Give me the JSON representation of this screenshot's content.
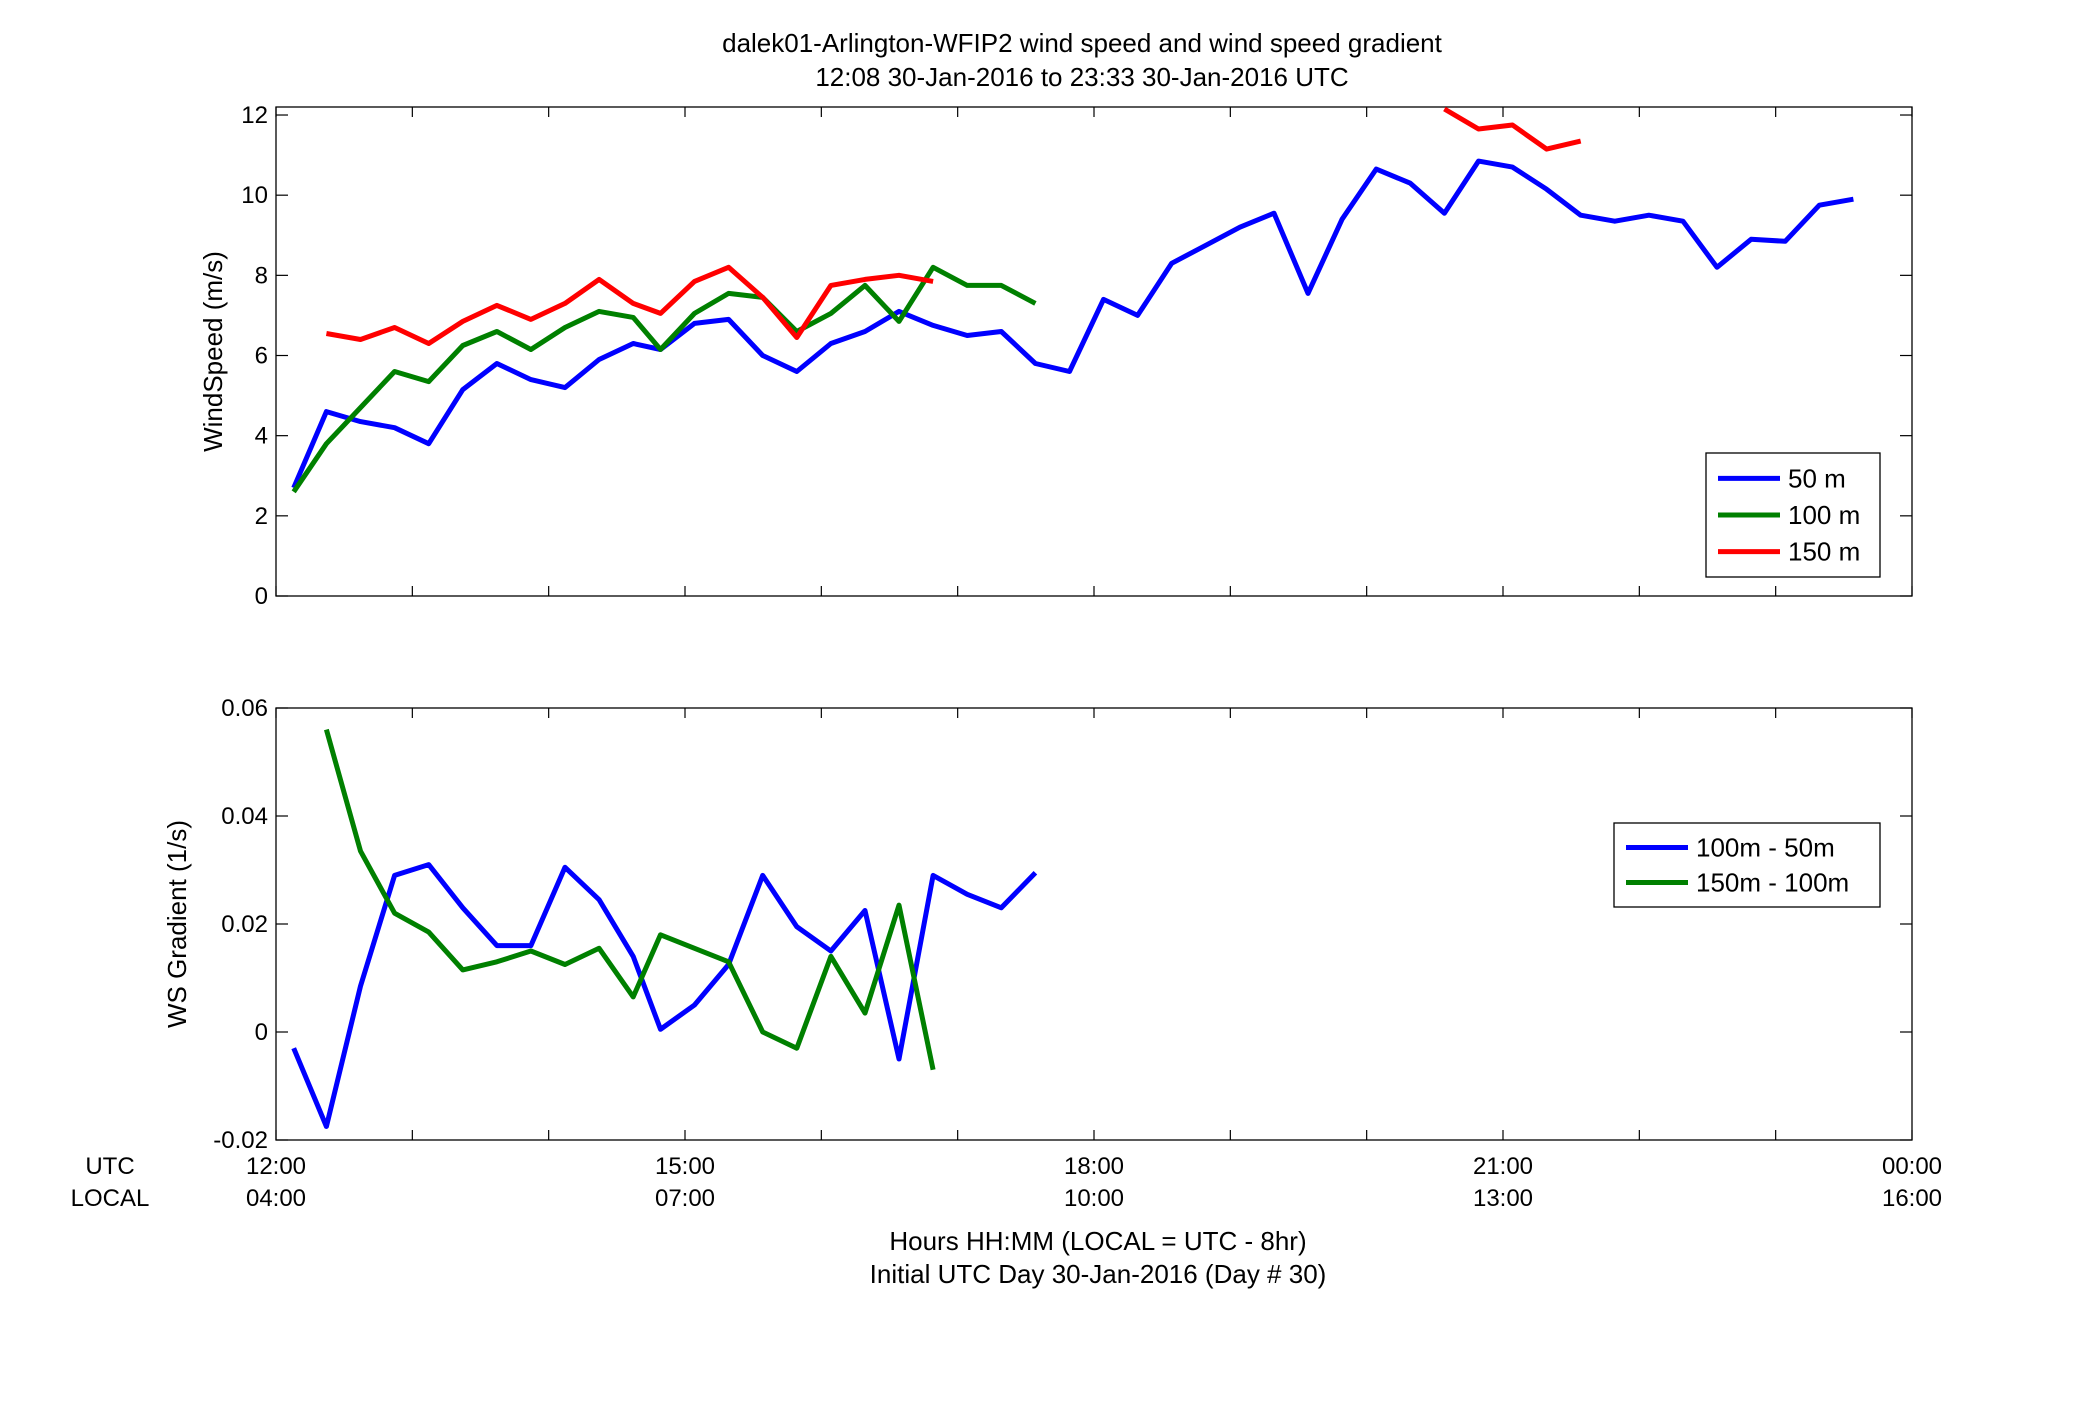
{
  "chart_data": [
    {
      "type": "line",
      "title_line1": "dalek01-Arlington-WFIP2  wind speed and wind speed gradient",
      "title_line2": "12:08 30-Jan-2016 to 23:33 30-Jan-2016  UTC",
      "ylabel": "WindSpeed (m/s)",
      "xlim_hours": [
        12,
        24
      ],
      "ylim": [
        0,
        12.2
      ],
      "yticks": [
        0,
        2,
        4,
        6,
        8,
        10,
        12
      ],
      "ytick_labels": [
        "0",
        "2",
        "4",
        "6",
        "8",
        "10",
        "12"
      ],
      "grid": false,
      "legend_position": "lower-right",
      "series": [
        {
          "name": "50 m",
          "color": "#0000ff",
          "x": [
            12.13,
            12.37,
            12.62,
            12.87,
            13.12,
            13.37,
            13.62,
            13.87,
            14.12,
            14.37,
            14.62,
            14.82,
            15.07,
            15.32,
            15.57,
            15.82,
            16.07,
            16.32,
            16.57,
            16.82,
            17.07,
            17.32,
            17.57,
            17.82,
            18.07,
            18.32,
            18.57,
            18.82,
            19.07,
            19.32,
            19.57,
            19.82,
            20.07,
            20.32,
            20.57,
            20.82,
            21.07,
            21.32,
            21.57,
            21.82,
            22.07,
            22.32,
            22.57,
            22.82,
            23.07,
            23.32,
            23.57
          ],
          "values": [
            2.7,
            4.6,
            4.35,
            4.2,
            3.8,
            5.15,
            5.8,
            5.4,
            5.2,
            5.9,
            6.3,
            6.15,
            6.8,
            6.9,
            6.0,
            5.6,
            6.3,
            6.6,
            7.1,
            6.75,
            6.5,
            6.6,
            5.8,
            5.6,
            7.4,
            7.0,
            8.3,
            8.75,
            9.2,
            9.55,
            7.55,
            9.4,
            10.65,
            10.3,
            9.55,
            10.85,
            10.7,
            10.15,
            9.5,
            9.35,
            9.5,
            9.35,
            8.2,
            8.9,
            8.85,
            9.75,
            9.9
          ]
        },
        {
          "name": "100 m",
          "color": "#008000",
          "x": [
            12.13,
            12.37,
            12.62,
            12.87,
            13.12,
            13.37,
            13.62,
            13.87,
            14.12,
            14.37,
            14.62,
            14.82,
            15.07,
            15.32,
            15.57,
            15.82,
            16.07,
            16.32,
            16.57,
            16.82,
            17.07,
            17.32,
            17.57
          ],
          "values": [
            2.6,
            3.8,
            4.7,
            5.6,
            5.35,
            6.25,
            6.6,
            6.15,
            6.7,
            7.1,
            6.95,
            6.15,
            7.05,
            7.55,
            7.45,
            6.6,
            7.05,
            7.75,
            6.85,
            8.2,
            7.75,
            7.75,
            7.3
          ]
        },
        {
          "name": "150 m",
          "color": "#ff0000",
          "x": [
            12.37,
            12.62,
            12.87,
            13.12,
            13.37,
            13.62,
            13.87,
            14.12,
            14.37,
            14.62,
            14.82,
            15.07,
            15.32,
            15.57,
            15.82,
            16.07,
            16.32,
            16.57,
            16.82,
            null,
            20.57,
            20.82,
            21.07,
            21.32,
            21.57
          ],
          "values": [
            6.55,
            6.4,
            6.7,
            6.3,
            6.85,
            7.25,
            6.9,
            7.3,
            7.9,
            7.3,
            7.05,
            7.85,
            8.2,
            7.45,
            6.45,
            7.75,
            7.9,
            8.0,
            7.85,
            null,
            12.15,
            11.65,
            11.75,
            11.15,
            11.35
          ]
        }
      ]
    },
    {
      "type": "line",
      "ylabel": "WS Gradient (1/s)",
      "xlabel_line1": "Hours HH:MM  (LOCAL = UTC - 8hr)",
      "xlabel_line2": "Initial UTC Day 30-Jan-2016 (Day # 30)",
      "row_label_utc": "UTC",
      "row_label_local": "LOCAL",
      "xlim_hours": [
        12,
        24
      ],
      "ylim": [
        -0.02,
        0.06
      ],
      "yticks": [
        -0.02,
        0,
        0.02,
        0.04,
        0.06
      ],
      "ytick_labels": [
        "-0.02",
        "0",
        "0.02",
        "0.04",
        "0.06"
      ],
      "xticks_hours": [
        12,
        15,
        18,
        21,
        24
      ],
      "xtick_labels_utc": [
        "12:00",
        "15:00",
        "18:00",
        "21:00",
        "00:00"
      ],
      "xtick_labels_local": [
        "04:00",
        "07:00",
        "10:00",
        "13:00",
        "16:00"
      ],
      "grid": false,
      "legend_position": "upper-right",
      "series": [
        {
          "name": "100m - 50m",
          "color": "#0000ff",
          "x": [
            12.13,
            12.37,
            12.62,
            12.87,
            13.12,
            13.37,
            13.62,
            13.87,
            14.12,
            14.37,
            14.62,
            14.82,
            15.07,
            15.32,
            15.57,
            15.82,
            16.07,
            16.32,
            16.57,
            16.82,
            17.07,
            17.32,
            17.57
          ],
          "values": [
            -0.003,
            -0.0175,
            0.0085,
            0.029,
            0.031,
            0.023,
            0.016,
            0.016,
            0.0305,
            0.0245,
            0.014,
            0.0005,
            0.005,
            0.0125,
            0.029,
            0.0195,
            0.015,
            0.0225,
            -0.005,
            0.029,
            0.0255,
            0.023,
            0.0295
          ]
        },
        {
          "name": "150m - 100m",
          "color": "#008000",
          "x": [
            12.37,
            12.62,
            12.87,
            13.12,
            13.37,
            13.62,
            13.87,
            14.12,
            14.37,
            14.62,
            14.82,
            15.07,
            15.32,
            15.57,
            15.82,
            16.07,
            16.32,
            16.57,
            16.82
          ],
          "values": [
            0.056,
            0.0335,
            0.022,
            0.0185,
            0.0115,
            0.013,
            0.015,
            0.0125,
            0.0155,
            0.0065,
            0.018,
            0.0155,
            0.013,
            0.0,
            -0.003,
            0.014,
            0.0035,
            0.0235,
            -0.007
          ]
        }
      ]
    }
  ]
}
